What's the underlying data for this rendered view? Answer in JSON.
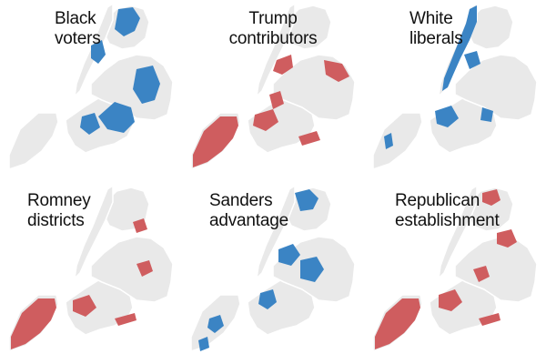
{
  "colors": {
    "background": "#ffffff",
    "land": "#e9e9e9",
    "border": "#ffffff",
    "blue": "#3b84c4",
    "red": "#cf5d5f",
    "title": "#111111"
  },
  "panels": [
    {
      "id": "black-voters",
      "title_lines": [
        "Black",
        "voters"
      ],
      "highlight_color": "blue"
    },
    {
      "id": "trump-contributors",
      "title_lines": [
        "Trump",
        "contributors"
      ],
      "highlight_color": "red"
    },
    {
      "id": "white-liberals",
      "title_lines": [
        "White",
        "liberals"
      ],
      "highlight_color": "blue"
    },
    {
      "id": "romney-districts",
      "title_lines": [
        "Romney",
        "districts"
      ],
      "highlight_color": "red"
    },
    {
      "id": "sanders-advantage",
      "title_lines": [
        "Sanders",
        "advantage"
      ],
      "highlight_color": "blue"
    },
    {
      "id": "republican-establishment",
      "title_lines": [
        "Republican",
        "establishment"
      ],
      "highlight_color": "red"
    }
  ]
}
